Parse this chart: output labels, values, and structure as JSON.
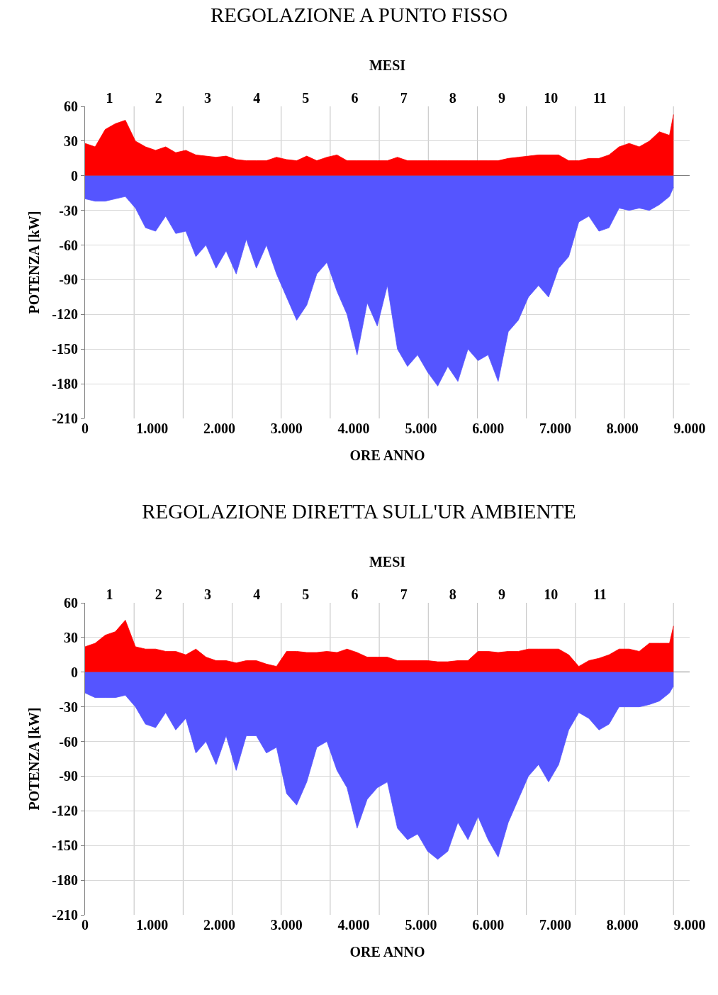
{
  "chart_data": [
    {
      "type": "area",
      "title": "REGOLAZIONE A PUNTO FISSO",
      "xlabel": "ORE ANNO",
      "ylabel": "POTENZA [kW]",
      "x2label": "MESI",
      "x": [
        0,
        150,
        300,
        450,
        600,
        750,
        900,
        1050,
        1200,
        1350,
        1500,
        1650,
        1800,
        1950,
        2100,
        2250,
        2400,
        2550,
        2700,
        2850,
        3000,
        3150,
        3300,
        3450,
        3600,
        3750,
        3900,
        4050,
        4200,
        4350,
        4500,
        4650,
        4800,
        4950,
        5100,
        5250,
        5400,
        5550,
        5700,
        5850,
        6000,
        6150,
        6300,
        6450,
        6600,
        6750,
        6900,
        7050,
        7200,
        7350,
        7500,
        7650,
        7800,
        7950,
        8100,
        8250,
        8400,
        8550,
        8700,
        8760
      ],
      "series": [
        {
          "color": "#ff0000",
          "values": [
            28,
            25,
            40,
            45,
            48,
            30,
            25,
            22,
            25,
            20,
            22,
            18,
            17,
            16,
            17,
            14,
            13,
            13,
            13,
            16,
            14,
            13,
            17,
            13,
            16,
            18,
            13,
            13,
            13,
            13,
            13,
            16,
            13,
            13,
            13,
            13,
            13,
            13,
            13,
            13,
            13,
            13,
            15,
            16,
            17,
            18,
            18,
            18,
            13,
            13,
            15,
            15,
            18,
            25,
            28,
            25,
            30,
            38,
            35,
            53
          ]
        },
        {
          "color": "#5555ff",
          "values": [
            -20,
            -22,
            -22,
            -20,
            -18,
            -28,
            -45,
            -48,
            -35,
            -50,
            -48,
            -70,
            -60,
            -80,
            -65,
            -85,
            -55,
            -80,
            -60,
            -85,
            -105,
            -125,
            -112,
            -85,
            -75,
            -100,
            -120,
            -155,
            -110,
            -130,
            -95,
            -150,
            -165,
            -155,
            -170,
            -182,
            -165,
            -178,
            -150,
            -160,
            -155,
            -178,
            -135,
            -125,
            -105,
            -95,
            -105,
            -80,
            -70,
            -40,
            -35,
            -48,
            -45,
            -28,
            -30,
            -28,
            -30,
            -25,
            -18,
            -10
          ]
        }
      ],
      "xlim": [
        0,
        9000
      ],
      "xticks": [
        0,
        {
          "value": 1000,
          "label": "1.000"
        },
        {
          "value": 2000,
          "label": "2.000"
        },
        {
          "value": 3000,
          "label": "3.000"
        },
        {
          "value": 4000,
          "label": "4.000"
        },
        {
          "value": 5000,
          "label": "5.000"
        },
        {
          "value": 6000,
          "label": "6.000"
        },
        {
          "value": 7000,
          "label": "7.000"
        },
        {
          "value": 8000,
          "label": "8.000"
        },
        {
          "value": 9000,
          "label": "9.000"
        }
      ],
      "x2lim": [
        0.5,
        12.83
      ],
      "x2ticks": [
        1,
        2,
        3,
        4,
        5,
        6,
        7,
        8,
        9,
        10,
        11,
        {
          "value": 1.5,
          "label": null
        },
        {
          "value": 2.5,
          "label": null
        },
        {
          "value": 3.5,
          "label": null
        },
        {
          "value": 4.5,
          "label": null
        },
        {
          "value": 5.5,
          "label": null
        },
        {
          "value": 6.5,
          "label": null
        },
        {
          "value": 7.5,
          "label": null
        },
        {
          "value": 8.5,
          "label": null
        },
        {
          "value": 9.5,
          "label": null
        },
        {
          "value": 10.5,
          "label": null
        },
        {
          "value": 11.5,
          "label": null
        },
        {
          "value": 12.5,
          "label": null
        }
      ],
      "ylim": [
        -210,
        60
      ],
      "yticks": [
        -210,
        -180,
        -150,
        -120,
        -90,
        -60,
        -30,
        0,
        30,
        60
      ],
      "grid": true
    },
    {
      "type": "area",
      "title": "REGOLAZIONE DIRETTA SULL'UR AMBIENTE",
      "xlabel": "ORE ANNO",
      "ylabel": "POTENZA [kW]",
      "x2label": "MESI",
      "x": [
        0,
        150,
        300,
        450,
        600,
        750,
        900,
        1050,
        1200,
        1350,
        1500,
        1650,
        1800,
        1950,
        2100,
        2250,
        2400,
        2550,
        2700,
        2850,
        3000,
        3150,
        3300,
        3450,
        3600,
        3750,
        3900,
        4050,
        4200,
        4350,
        4500,
        4650,
        4800,
        4950,
        5100,
        5250,
        5400,
        5550,
        5700,
        5850,
        6000,
        6150,
        6300,
        6450,
        6600,
        6750,
        6900,
        7050,
        7200,
        7350,
        7500,
        7650,
        7800,
        7950,
        8100,
        8250,
        8400,
        8550,
        8700,
        8760
      ],
      "series": [
        {
          "color": "#ff0000",
          "values": [
            22,
            25,
            32,
            35,
            45,
            22,
            20,
            20,
            18,
            18,
            15,
            20,
            13,
            10,
            10,
            8,
            10,
            10,
            7,
            5,
            18,
            18,
            17,
            17,
            18,
            17,
            20,
            17,
            13,
            13,
            13,
            10,
            10,
            10,
            10,
            9,
            9,
            10,
            10,
            18,
            18,
            17,
            18,
            18,
            20,
            20,
            20,
            20,
            15,
            5,
            10,
            12,
            15,
            20,
            20,
            18,
            25,
            25,
            25,
            40
          ]
        },
        {
          "color": "#5555ff",
          "values": [
            -18,
            -22,
            -22,
            -22,
            -20,
            -30,
            -45,
            -48,
            -35,
            -50,
            -40,
            -70,
            -60,
            -80,
            -55,
            -85,
            -55,
            -55,
            -70,
            -65,
            -105,
            -115,
            -95,
            -65,
            -60,
            -85,
            -100,
            -135,
            -110,
            -100,
            -95,
            -135,
            -145,
            -140,
            -155,
            -162,
            -155,
            -130,
            -145,
            -125,
            -145,
            -160,
            -130,
            -110,
            -90,
            -80,
            -95,
            -80,
            -50,
            -35,
            -40,
            -50,
            -45,
            -30,
            -30,
            -30,
            -28,
            -25,
            -18,
            -12
          ]
        }
      ],
      "xlim": [
        0,
        9000
      ],
      "xticks": [
        0,
        {
          "value": 1000,
          "label": "1.000"
        },
        {
          "value": 2000,
          "label": "2.000"
        },
        {
          "value": 3000,
          "label": "3.000"
        },
        {
          "value": 4000,
          "label": "4.000"
        },
        {
          "value": 5000,
          "label": "5.000"
        },
        {
          "value": 6000,
          "label": "6.000"
        },
        {
          "value": 7000,
          "label": "7.000"
        },
        {
          "value": 8000,
          "label": "8.000"
        },
        {
          "value": 9000,
          "label": "9.000"
        }
      ],
      "x2lim": [
        0.5,
        12.83
      ],
      "x2ticks": [
        1,
        2,
        3,
        4,
        5,
        6,
        7,
        8,
        9,
        10,
        11,
        {
          "value": 1.5,
          "label": null
        },
        {
          "value": 2.5,
          "label": null
        },
        {
          "value": 3.5,
          "label": null
        },
        {
          "value": 4.5,
          "label": null
        },
        {
          "value": 5.5,
          "label": null
        },
        {
          "value": 6.5,
          "label": null
        },
        {
          "value": 7.5,
          "label": null
        },
        {
          "value": 8.5,
          "label": null
        },
        {
          "value": 9.5,
          "label": null
        },
        {
          "value": 10.5,
          "label": null
        },
        {
          "value": 11.5,
          "label": null
        },
        {
          "value": 12.5,
          "label": null
        }
      ],
      "ylim": [
        -210,
        60
      ],
      "yticks": [
        -210,
        -180,
        -150,
        -120,
        -90,
        -60,
        -30,
        0,
        30,
        60
      ],
      "grid": true
    }
  ]
}
